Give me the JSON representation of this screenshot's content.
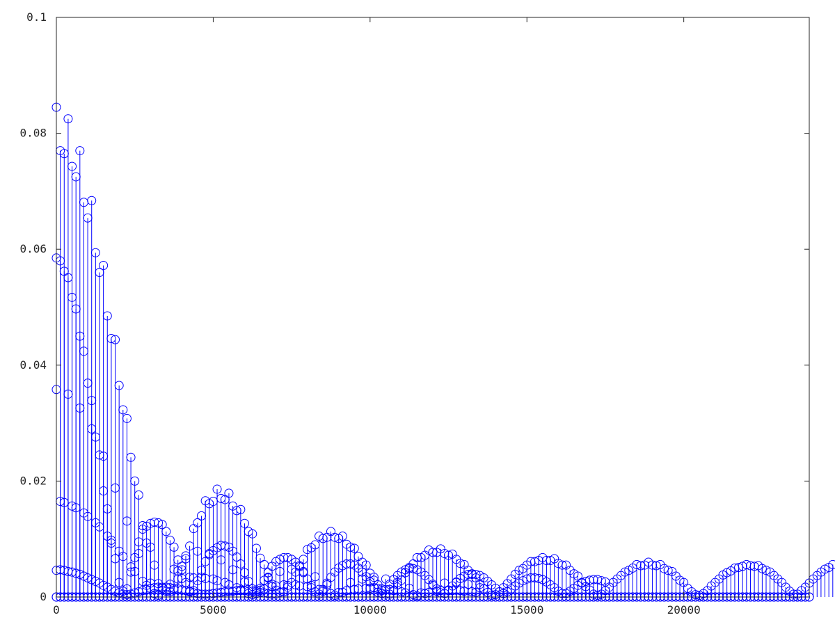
{
  "chart_data": {
    "type": "stem",
    "title": "",
    "xlabel": "",
    "ylabel": "",
    "xlim": [
      0,
      24000
    ],
    "ylim": [
      0,
      0.1
    ],
    "grid": false,
    "legend": "none",
    "marker": "circle",
    "x_ticks": [
      0,
      5000,
      10000,
      15000,
      20000
    ],
    "x_tick_labels": [
      "0",
      "5000",
      "10000",
      "15000",
      "20000"
    ],
    "y_ticks": [
      0,
      0.02,
      0.04,
      0.06,
      0.08,
      0.1
    ],
    "y_tick_labels": [
      "0",
      "0.02",
      "0.04",
      "0.06",
      "0.08",
      "0.1"
    ],
    "series_color": "#0000ff",
    "axis_color": "#262626",
    "x_spacing": 125,
    "x_count": 193,
    "stem_series": [
      {
        "values": [
          0.0845,
          0.077,
          0.0765,
          0.0825,
          0.0743,
          0.0725,
          0.077,
          0.0681,
          0.0654,
          0.0684,
          0.0594,
          0.056,
          0.0572,
          0.0485,
          0.0446,
          0.0444,
          0.0365,
          0.0323,
          0.0308,
          0.0241,
          0.02,
          0.0176,
          0.0123,
          0.0093,
          0.0086,
          0.0055,
          0.0023,
          0.0015,
          0.001,
          0.0009,
          0.0012,
          0.0045,
          0.0053,
          0.0066,
          0.0088,
          0.0118,
          0.0128,
          0.014,
          0.0166,
          0.0161,
          0.0165,
          0.0186,
          0.017,
          0.0168,
          0.0179,
          0.0157,
          0.0149,
          0.0151,
          0.0127,
          0.0113,
          0.0109,
          0.0084,
          0.0067,
          0.0056,
          0.0034,
          0.0022,
          0.0012,
          0.0008,
          0.0009,
          0.0017,
          0.0025,
          0.0043,
          0.0054,
          0.0065,
          0.0082,
          0.0085,
          0.009,
          0.0105,
          0.0101,
          0.0103,
          0.0113,
          0.0103,
          0.0101,
          0.0105,
          0.0091,
          0.0086,
          0.0084,
          0.007,
          0.006,
          0.0055,
          0.0041,
          0.0029,
          0.0021,
          0.0011,
          0.0005,
          0.0005,
          0.0011,
          0.0021,
          0.0029,
          0.0042,
          0.0051,
          0.0057,
          0.0068,
          0.0068,
          0.0072,
          0.0081,
          0.0077,
          0.0077,
          0.0083,
          0.0075,
          0.0072,
          0.0074,
          0.0065,
          0.0058,
          0.0056,
          0.0046,
          0.0039,
          0.0033,
          0.0022,
          0.0014,
          0.0008,
          0.0003,
          0.0004,
          0.0009,
          0.0016,
          0.0023,
          0.0031,
          0.0039,
          0.0046,
          0.0049,
          0.0055,
          0.0061,
          0.0061,
          0.0063,
          0.0068,
          0.0063,
          0.0063,
          0.0066,
          0.0058,
          0.0055,
          0.0055,
          0.0046,
          0.004,
          0.0036,
          0.0025,
          0.0018,
          0.0012,
          0.0005,
          0.0003,
          0.0005,
          0.0011,
          0.0017,
          0.0025,
          0.0031,
          0.0037,
          0.0043,
          0.0046,
          0.005,
          0.0056,
          0.0054,
          0.0055,
          0.006,
          0.0055,
          0.0054,
          0.0056,
          0.0049,
          0.0046,
          0.0044,
          0.0036,
          0.0029,
          0.0025,
          0.0015,
          0.0009,
          0.0004,
          0.0003,
          0.0006,
          0.0011,
          0.0019,
          0.0025,
          0.0031,
          0.0038,
          0.0042,
          0.0045,
          0.005,
          0.0051,
          0.0053,
          0.0056,
          0.0054,
          0.0053,
          0.0054,
          0.0049,
          0.0046,
          0.0043,
          0.0037,
          0.0031,
          0.0025,
          0.0017,
          0.001,
          0.0005,
          0.0005,
          0.0011,
          0.0017,
          0.0024,
          0.0031,
          0.0037,
          0.0043,
          0.0048,
          0.0051,
          0.0056
        ]
      },
      {
        "values": [
          0.0585,
          0.058,
          0.0562,
          0.0551,
          0.0517,
          0.0497,
          0.045,
          0.0424,
          0.0369,
          0.0339,
          0.0276,
          0.0245,
          0.0183,
          0.0152,
          0.0093,
          0.0066,
          0.0025,
          0.001,
          0.0014,
          0.0043,
          0.0068,
          0.0095,
          0.0117,
          0.0122,
          0.0127,
          0.0129,
          0.0128,
          0.0125,
          0.0113,
          0.0098,
          0.0086,
          0.0064,
          0.0047,
          0.0025,
          0.001,
          0.0011,
          0.0028,
          0.0046,
          0.0061,
          0.0073,
          0.008,
          0.0085,
          0.0089,
          0.0088,
          0.0086,
          0.0079,
          0.0069,
          0.0057,
          0.0042,
          0.0027,
          0.0014,
          0.0006,
          0.0015,
          0.0029,
          0.0042,
          0.0053,
          0.0061,
          0.0065,
          0.0068,
          0.0068,
          0.0065,
          0.006,
          0.0052,
          0.0042,
          0.0031,
          0.002,
          0.0009,
          0.0005,
          0.0013,
          0.0024,
          0.0034,
          0.0043,
          0.005,
          0.0054,
          0.0057,
          0.0057,
          0.0055,
          0.005,
          0.0043,
          0.0035,
          0.0026,
          0.0016,
          0.0008,
          0.0006,
          0.0013,
          0.0022,
          0.003,
          0.0037,
          0.0043,
          0.0047,
          0.0049,
          0.0049,
          0.0047,
          0.0043,
          0.0037,
          0.003,
          0.0022,
          0.0014,
          0.0007,
          0.0006,
          0.0012,
          0.0019,
          0.0026,
          0.0032,
          0.0036,
          0.0039,
          0.004,
          0.0039,
          0.0037,
          0.0033,
          0.0027,
          0.0021,
          0.0015,
          0.0009,
          0.0006,
          0.0009,
          0.0014,
          0.0019,
          0.0024,
          0.0028,
          0.0031,
          0.0033,
          0.0033,
          0.0032,
          0.003,
          0.0026,
          0.0021,
          0.0016,
          0.001,
          0.0006,
          0.0006,
          0.001,
          0.0015,
          0.002,
          0.0024,
          0.0027,
          0.0029,
          0.003,
          0.003,
          0.0028,
          0.0026
        ]
      },
      {
        "values": [
          0.0358,
          0.0165,
          0.0163,
          0.035,
          0.0157,
          0.0154,
          0.0326,
          0.0145,
          0.0139,
          0.029,
          0.0128,
          0.0121,
          0.0243,
          0.0105,
          0.0098,
          0.0188,
          0.0079,
          0.007,
          0.0131,
          0.0052,
          0.0044,
          0.0075,
          0.0027,
          0.002,
          0.0024,
          0.0006,
          0.0003,
          0.0012,
          0.0017,
          0.0022,
          0.0048,
          0.0031,
          0.0032,
          0.0071,
          0.0034,
          0.0033,
          0.0079,
          0.0034,
          0.0032,
          0.0075,
          0.0031,
          0.0028,
          0.0064,
          0.0025,
          0.0021,
          0.0047,
          0.0016,
          0.0012,
          0.0026,
          0.0006,
          0.0004,
          0.0012,
          0.0011,
          0.0014,
          0.0033,
          0.0018,
          0.0019,
          0.0044,
          0.0021,
          0.002,
          0.0048,
          0.0021,
          0.0019,
          0.0044,
          0.0018,
          0.0016,
          0.0035,
          0.0013,
          0.001,
          0.0021,
          0.0006,
          0.0003,
          0.0008,
          0.0008,
          0.0011,
          0.0025,
          0.0013,
          0.0014,
          0.0031,
          0.0015,
          0.0015,
          0.0034,
          0.0015,
          0.0014,
          0.0031,
          0.0013,
          0.0011,
          0.0025,
          0.0009,
          0.0007,
          0.0015,
          0.0004,
          0.0002,
          0.0007,
          0.0006,
          0.0008,
          0.002,
          0.001,
          0.0011,
          0.0024,
          0.0011,
          0.0011,
          0.0025,
          0.0011,
          0.001,
          0.0022,
          0.0009,
          0.0008,
          0.0016
        ]
      },
      {
        "values": [
          0.0046,
          0.0047,
          0.0046,
          0.0044,
          0.0043,
          0.0041,
          0.0039,
          0.0036,
          0.0033,
          0.003,
          0.0027,
          0.0024,
          0.002,
          0.0017,
          0.0013,
          0.001,
          0.0007,
          0.0005,
          0.0004,
          0.0005,
          0.0007,
          0.0009,
          0.0011,
          0.0013,
          0.0015,
          0.0016,
          0.0017,
          0.0017,
          0.0017,
          0.0016,
          0.0015,
          0.0014,
          0.0012,
          0.0011,
          0.0009,
          0.0007,
          0.0006,
          0.0005,
          0.0005,
          0.0005,
          0.0006,
          0.0007,
          0.0008,
          0.0009,
          0.001,
          0.001,
          0.0011,
          0.0011,
          0.0011,
          0.001,
          0.001,
          0.0009,
          0.0008,
          0.0007,
          0.0006,
          0.0005,
          0.0005
        ]
      }
    ]
  }
}
